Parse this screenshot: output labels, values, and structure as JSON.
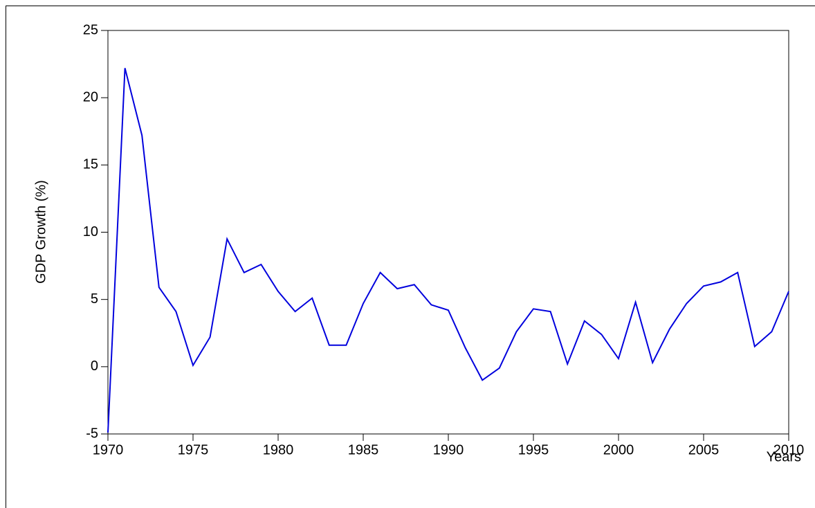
{
  "chart_data": {
    "type": "line",
    "y_label": "GDP Growth (%)",
    "x_label": "Years",
    "x": [
      1970,
      1971,
      1972,
      1973,
      1974,
      1975,
      1976,
      1977,
      1978,
      1979,
      1980,
      1981,
      1982,
      1983,
      1984,
      1985,
      1986,
      1987,
      1988,
      1989,
      1990,
      1991,
      1992,
      1993,
      1994,
      1995,
      1996,
      1997,
      1998,
      1999,
      2000,
      2001,
      2002,
      2003,
      2004,
      2005,
      2006,
      2007,
      2008,
      2009,
      2010
    ],
    "series": [
      {
        "color": "#0000dd",
        "values": [
          -4.9,
          22.2,
          17.2,
          5.9,
          4.1,
          0.1,
          2.2,
          9.5,
          7.0,
          7.6,
          5.6,
          4.1,
          5.1,
          1.6,
          1.6,
          4.7,
          7.0,
          5.8,
          6.1,
          4.6,
          4.2,
          1.4,
          -1.0,
          -0.1,
          2.6,
          4.3,
          4.1,
          0.2,
          3.4,
          2.4,
          0.6,
          4.8,
          0.3,
          2.8,
          4.7,
          6.0,
          6.3,
          7.0,
          1.5,
          2.6,
          5.6
        ]
      }
    ],
    "xlim": [
      1970,
      2010
    ],
    "xticks": [
      1970,
      1975,
      1980,
      1985,
      1990,
      1995,
      2000,
      2005,
      2010
    ],
    "ylim": [
      -5,
      25
    ],
    "yticks": [
      -5,
      0,
      5,
      10,
      15,
      20,
      25
    ]
  }
}
